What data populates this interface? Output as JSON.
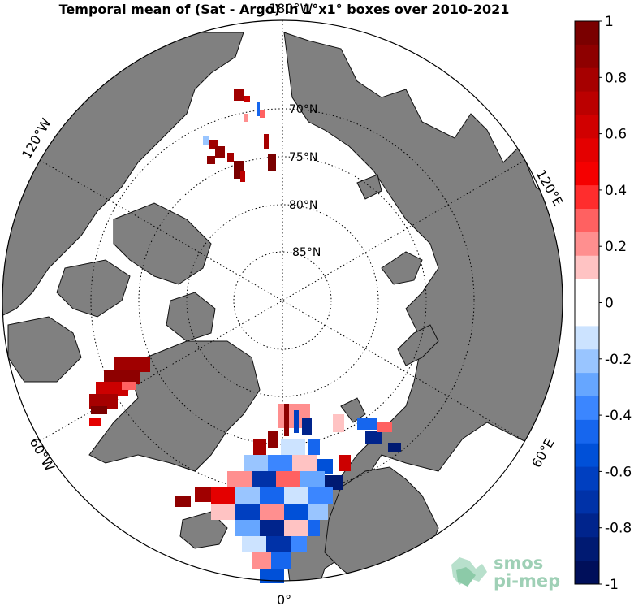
{
  "map": {
    "title": "Temporal mean of (Sat - Argo) in 1°x1° boxes over 2010-2021",
    "projection": "north-polar-stereographic",
    "lon_labels": [
      "180°W",
      "120°W",
      "60°W",
      "0°",
      "60°E",
      "120°E"
    ],
    "lat_labels": [
      "70°N",
      "75°N",
      "80°N",
      "85°N"
    ],
    "land_color": "#808080",
    "ocean_color": "#ffffff"
  },
  "colorbar": {
    "tick_labels": [
      "1",
      "0.8",
      "0.6",
      "0.4",
      "0.2",
      "0",
      "-0.2",
      "-0.4",
      "-0.6",
      "-0.8",
      "-1"
    ],
    "range": [
      -1,
      1
    ],
    "colors": [
      "#7a0000",
      "#8e0000",
      "#a60000",
      "#bb0000",
      "#d10000",
      "#e40000",
      "#f50000",
      "#ff2d2d",
      "#ff6161",
      "#ff8f8f",
      "#ffc3c3",
      "#ffffff",
      "#ffffff",
      "#cce3ff",
      "#99c5ff",
      "#66a6ff",
      "#3b86ff",
      "#1666ee",
      "#0050d8",
      "#003fc0",
      "#0032a8",
      "#00248c",
      "#001a72",
      "#000f5a"
    ]
  },
  "logo": {
    "line1": "smos",
    "line2": "pi-mep"
  }
}
